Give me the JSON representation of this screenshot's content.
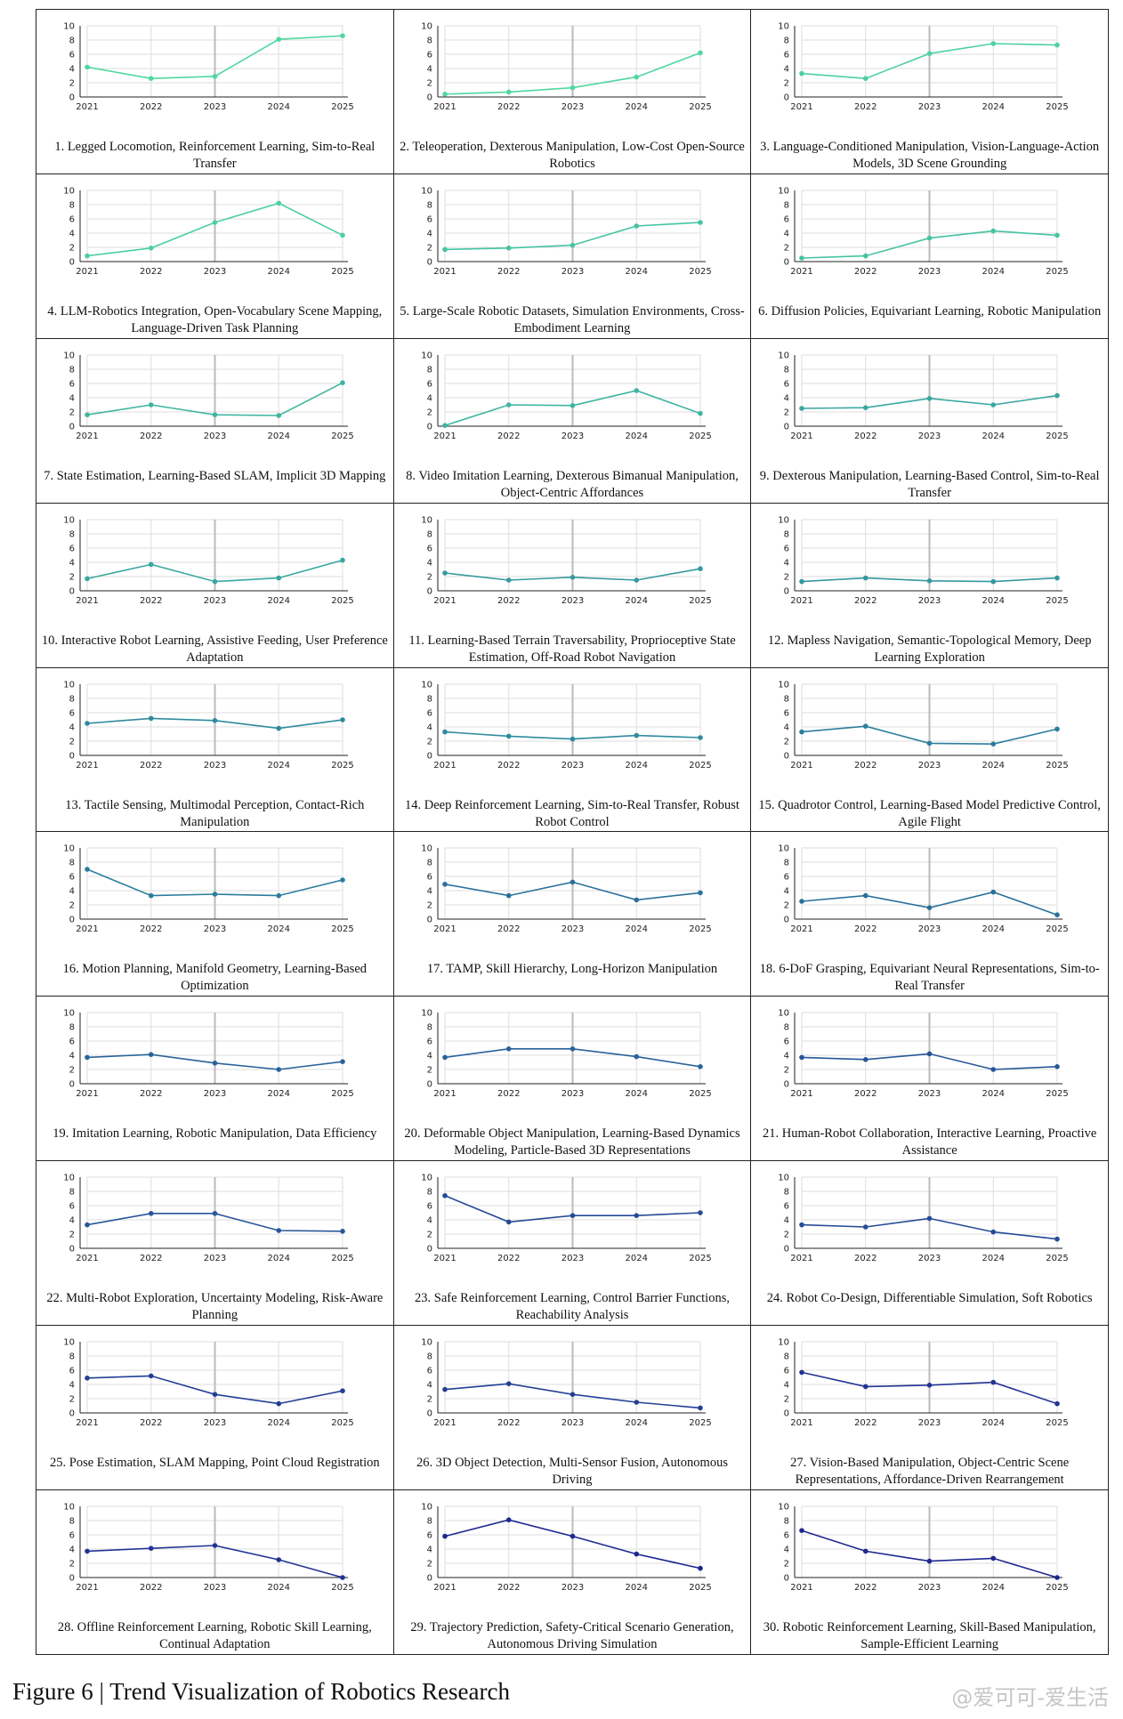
{
  "figure_caption": "Figure 6 | Trend Visualization of Robotics Research",
  "watermark": "@爱可可-爱生活",
  "colors": {
    "palette": [
      "#4fd8a0",
      "#4ccfa3",
      "#45c3a2",
      "#3fb5a1",
      "#39a7a0",
      "#34999f",
      "#2e8a9e",
      "#2b7d9d",
      "#2a709b",
      "#29639a",
      "#275698",
      "#254b96",
      "#233f94",
      "#223393",
      "#1f278f"
    ],
    "grid": "#dddddd",
    "mid_grid": "#bbbbbb",
    "axis": "#222222"
  },
  "chart_data": [
    {
      "type": "line",
      "caption": "1. Legged Locomotion, Reinforcement Learning, Sim-to-Real Transfer",
      "x": [
        "2021",
        "2022",
        "2023",
        "2024",
        "2025"
      ],
      "values": [
        4.2,
        2.6,
        2.9,
        8.1,
        8.6
      ],
      "ylim": [
        0,
        10
      ],
      "yticks": [
        "0",
        "2",
        "4",
        "6",
        "8",
        "10"
      ]
    },
    {
      "type": "line",
      "caption": "2. Teleoperation, Dexterous Manipulation, Low-Cost Open-Source Robotics",
      "x": [
        "2021",
        "2022",
        "2023",
        "2024",
        "2025"
      ],
      "values": [
        0.4,
        0.7,
        1.3,
        2.8,
        6.2
      ],
      "ylim": [
        0,
        10
      ],
      "yticks": [
        "0",
        "2",
        "4",
        "6",
        "8",
        "10"
      ]
    },
    {
      "type": "line",
      "caption": "3. Language-Conditioned Manipulation, Vision-Language-Action Models, 3D Scene Grounding",
      "x": [
        "2021",
        "2022",
        "2023",
        "2024",
        "2025"
      ],
      "values": [
        3.3,
        2.6,
        6.1,
        7.5,
        7.3
      ],
      "ylim": [
        0,
        10
      ],
      "yticks": [
        "0",
        "2",
        "4",
        "6",
        "8",
        "10"
      ]
    },
    {
      "type": "line",
      "caption": "4. LLM-Robotics Integration, Open-Vocabulary Scene Mapping, Language-Driven Task Planning",
      "x": [
        "2021",
        "2022",
        "2023",
        "2024",
        "2025"
      ],
      "values": [
        0.8,
        1.9,
        5.5,
        8.2,
        3.7
      ],
      "ylim": [
        0,
        10
      ],
      "yticks": [
        "0",
        "2",
        "4",
        "6",
        "8",
        "10"
      ]
    },
    {
      "type": "line",
      "caption": "5. Large-Scale Robotic Datasets, Simulation Environments, Cross-Embodiment Learning",
      "x": [
        "2021",
        "2022",
        "2023",
        "2024",
        "2025"
      ],
      "values": [
        1.7,
        1.9,
        2.3,
        5.0,
        5.5
      ],
      "ylim": [
        0,
        10
      ],
      "yticks": [
        "0",
        "2",
        "4",
        "6",
        "8",
        "10"
      ]
    },
    {
      "type": "line",
      "caption": "6. Diffusion Policies, Equivariant Learning, Robotic Manipulation",
      "x": [
        "2021",
        "2022",
        "2023",
        "2024",
        "2025"
      ],
      "values": [
        0.5,
        0.8,
        3.3,
        4.3,
        3.7
      ],
      "ylim": [
        0,
        10
      ],
      "yticks": [
        "0",
        "2",
        "4",
        "6",
        "8",
        "10"
      ]
    },
    {
      "type": "line",
      "caption": "7. State Estimation, Learning-Based SLAM, Implicit 3D Mapping",
      "x": [
        "2021",
        "2022",
        "2023",
        "2024",
        "2025"
      ],
      "values": [
        1.6,
        3.0,
        1.6,
        1.5,
        6.1
      ],
      "ylim": [
        0,
        10
      ],
      "yticks": [
        "0",
        "2",
        "4",
        "6",
        "8",
        "10"
      ]
    },
    {
      "type": "line",
      "caption": "8. Video Imitation Learning, Dexterous Bimanual Manipulation, Object-Centric Affordances",
      "x": [
        "2021",
        "2022",
        "2023",
        "2024",
        "2025"
      ],
      "values": [
        0.1,
        3.0,
        2.9,
        5.0,
        1.8
      ],
      "ylim": [
        0,
        10
      ],
      "yticks": [
        "0",
        "2",
        "4",
        "6",
        "8",
        "10"
      ]
    },
    {
      "type": "line",
      "caption": "9. Dexterous Manipulation, Learning-Based Control, Sim-to-Real Transfer",
      "x": [
        "2021",
        "2022",
        "2023",
        "2024",
        "2025"
      ],
      "values": [
        2.5,
        2.6,
        3.9,
        3.0,
        4.3
      ],
      "ylim": [
        0,
        10
      ],
      "yticks": [
        "0",
        "2",
        "4",
        "6",
        "8",
        "10"
      ]
    },
    {
      "type": "line",
      "caption": "10. Interactive Robot Learning, Assistive Feeding, User Preference Adaptation",
      "x": [
        "2021",
        "2022",
        "2023",
        "2024",
        "2025"
      ],
      "values": [
        1.7,
        3.7,
        1.3,
        1.8,
        4.3
      ],
      "ylim": [
        0,
        10
      ],
      "yticks": [
        "0",
        "2",
        "4",
        "6",
        "8",
        "10"
      ]
    },
    {
      "type": "line",
      "caption": "11. Learning-Based Terrain Traversability, Proprioceptive State Estimation, Off-Road Robot Navigation",
      "x": [
        "2021",
        "2022",
        "2023",
        "2024",
        "2025"
      ],
      "values": [
        2.5,
        1.5,
        1.9,
        1.5,
        3.1
      ],
      "ylim": [
        0,
        10
      ],
      "yticks": [
        "0",
        "2",
        "4",
        "6",
        "8",
        "10"
      ]
    },
    {
      "type": "line",
      "caption": "12. Mapless Navigation, Semantic-Topological Memory, Deep Learning Exploration",
      "x": [
        "2021",
        "2022",
        "2023",
        "2024",
        "2025"
      ],
      "values": [
        1.3,
        1.8,
        1.4,
        1.3,
        1.8
      ],
      "ylim": [
        0,
        10
      ],
      "yticks": [
        "0",
        "2",
        "4",
        "6",
        "8",
        "10"
      ]
    },
    {
      "type": "line",
      "caption": "13. Tactile Sensing, Multimodal Perception, Contact-Rich Manipulation",
      "x": [
        "2021",
        "2022",
        "2023",
        "2024",
        "2025"
      ],
      "values": [
        4.5,
        5.2,
        4.9,
        3.8,
        5.0
      ],
      "ylim": [
        0,
        10
      ],
      "yticks": [
        "0",
        "2",
        "4",
        "6",
        "8",
        "10"
      ]
    },
    {
      "type": "line",
      "caption": "14. Deep Reinforcement Learning, Sim-to-Real Transfer, Robust Robot Control",
      "x": [
        "2021",
        "2022",
        "2023",
        "2024",
        "2025"
      ],
      "values": [
        3.3,
        2.7,
        2.3,
        2.8,
        2.5
      ],
      "ylim": [
        0,
        10
      ],
      "yticks": [
        "0",
        "2",
        "4",
        "6",
        "8",
        "10"
      ]
    },
    {
      "type": "line",
      "caption": "15. Quadrotor Control, Learning-Based Model Predictive Control, Agile Flight",
      "x": [
        "2021",
        "2022",
        "2023",
        "2024",
        "2025"
      ],
      "values": [
        3.3,
        4.1,
        1.7,
        1.6,
        3.7
      ],
      "ylim": [
        0,
        10
      ],
      "yticks": [
        "0",
        "2",
        "4",
        "6",
        "8",
        "10"
      ]
    },
    {
      "type": "line",
      "caption": "16. Motion Planning, Manifold Geometry, Learning-Based Optimization",
      "x": [
        "2021",
        "2022",
        "2023",
        "2024",
        "2025"
      ],
      "values": [
        7.0,
        3.3,
        3.5,
        3.3,
        5.5
      ],
      "ylim": [
        0,
        10
      ],
      "yticks": [
        "0",
        "2",
        "4",
        "6",
        "8",
        "10"
      ]
    },
    {
      "type": "line",
      "caption": "17. TAMP, Skill Hierarchy, Long-Horizon Manipulation",
      "x": [
        "2021",
        "2022",
        "2023",
        "2024",
        "2025"
      ],
      "values": [
        4.9,
        3.3,
        5.2,
        2.7,
        3.7
      ],
      "ylim": [
        0,
        10
      ],
      "yticks": [
        "0",
        "2",
        "4",
        "6",
        "8",
        "10"
      ]
    },
    {
      "type": "line",
      "caption": "18. 6-DoF Grasping, Equivariant Neural Representations, Sim-to-Real Transfer",
      "x": [
        "2021",
        "2022",
        "2023",
        "2024",
        "2025"
      ],
      "values": [
        2.5,
        3.3,
        1.6,
        3.8,
        0.6
      ],
      "ylim": [
        0,
        10
      ],
      "yticks": [
        "0",
        "2",
        "4",
        "6",
        "8",
        "10"
      ]
    },
    {
      "type": "line",
      "caption": "19. Imitation Learning, Robotic Manipulation, Data Efficiency",
      "x": [
        "2021",
        "2022",
        "2023",
        "2024",
        "2025"
      ],
      "values": [
        3.7,
        4.1,
        2.9,
        2.0,
        3.1
      ],
      "ylim": [
        0,
        10
      ],
      "yticks": [
        "0",
        "2",
        "4",
        "6",
        "8",
        "10"
      ]
    },
    {
      "type": "line",
      "caption": "20. Deformable Object Manipulation, Learning-Based Dynamics Modeling, Particle-Based 3D Representations",
      "x": [
        "2021",
        "2022",
        "2023",
        "2024",
        "2025"
      ],
      "values": [
        3.7,
        4.9,
        4.9,
        3.8,
        2.4
      ],
      "ylim": [
        0,
        10
      ],
      "yticks": [
        "0",
        "2",
        "4",
        "6",
        "8",
        "10"
      ]
    },
    {
      "type": "line",
      "caption": "21. Human-Robot Collaboration, Interactive Learning, Proactive Assistance",
      "x": [
        "2021",
        "2022",
        "2023",
        "2024",
        "2025"
      ],
      "values": [
        3.7,
        3.4,
        4.2,
        2.0,
        2.4
      ],
      "ylim": [
        0,
        10
      ],
      "yticks": [
        "0",
        "2",
        "4",
        "6",
        "8",
        "10"
      ]
    },
    {
      "type": "line",
      "caption": "22. Multi-Robot Exploration, Uncertainty Modeling, Risk-Aware Planning",
      "x": [
        "2021",
        "2022",
        "2023",
        "2024",
        "2025"
      ],
      "values": [
        3.3,
        4.9,
        4.9,
        2.5,
        2.4
      ],
      "ylim": [
        0,
        10
      ],
      "yticks": [
        "0",
        "2",
        "4",
        "6",
        "8",
        "10"
      ]
    },
    {
      "type": "line",
      "caption": "23. Safe Reinforcement Learning, Control Barrier Functions, Reachability Analysis",
      "x": [
        "2021",
        "2022",
        "2023",
        "2024",
        "2025"
      ],
      "values": [
        7.4,
        3.7,
        4.6,
        4.6,
        5.0
      ],
      "ylim": [
        0,
        10
      ],
      "yticks": [
        "0",
        "2",
        "4",
        "6",
        "8",
        "10"
      ]
    },
    {
      "type": "line",
      "caption": "24. Robot Co-Design, Differentiable Simulation, Soft Robotics",
      "x": [
        "2021",
        "2022",
        "2023",
        "2024",
        "2025"
      ],
      "values": [
        3.3,
        3.0,
        4.2,
        2.3,
        1.3
      ],
      "ylim": [
        0,
        10
      ],
      "yticks": [
        "0",
        "2",
        "4",
        "6",
        "8",
        "10"
      ]
    },
    {
      "type": "line",
      "caption": "25. Pose Estimation, SLAM Mapping, Point Cloud Registration",
      "x": [
        "2021",
        "2022",
        "2023",
        "2024",
        "2025"
      ],
      "values": [
        4.9,
        5.2,
        2.6,
        1.3,
        3.1
      ],
      "ylim": [
        0,
        10
      ],
      "yticks": [
        "0",
        "2",
        "4",
        "6",
        "8",
        "10"
      ]
    },
    {
      "type": "line",
      "caption": "26. 3D Object Detection, Multi-Sensor Fusion, Autonomous Driving",
      "x": [
        "2021",
        "2022",
        "2023",
        "2024",
        "2025"
      ],
      "values": [
        3.3,
        4.1,
        2.6,
        1.5,
        0.7
      ],
      "ylim": [
        0,
        10
      ],
      "yticks": [
        "0",
        "2",
        "4",
        "6",
        "8",
        "10"
      ]
    },
    {
      "type": "line",
      "caption": "27. Vision-Based Manipulation, Object-Centric Scene Representations, Affordance-Driven Rearrangement",
      "x": [
        "2021",
        "2022",
        "2023",
        "2024",
        "2025"
      ],
      "values": [
        5.7,
        3.7,
        3.9,
        4.3,
        1.3
      ],
      "ylim": [
        0,
        10
      ],
      "yticks": [
        "0",
        "2",
        "4",
        "6",
        "8",
        "10"
      ]
    },
    {
      "type": "line",
      "caption": "28. Offline Reinforcement Learning, Robotic Skill Learning, Continual Adaptation",
      "x": [
        "2021",
        "2022",
        "2023",
        "2024",
        "2025"
      ],
      "values": [
        3.7,
        4.1,
        4.5,
        2.5,
        0.0
      ],
      "ylim": [
        0,
        10
      ],
      "yticks": [
        "0",
        "2",
        "4",
        "6",
        "8",
        "10"
      ]
    },
    {
      "type": "line",
      "caption": "29. Trajectory Prediction, Safety-Critical Scenario Generation, Autonomous Driving Simulation",
      "x": [
        "2021",
        "2022",
        "2023",
        "2024",
        "2025"
      ],
      "values": [
        5.8,
        8.1,
        5.8,
        3.3,
        1.3
      ],
      "ylim": [
        0,
        10
      ],
      "yticks": [
        "0",
        "2",
        "4",
        "6",
        "8",
        "10"
      ]
    },
    {
      "type": "line",
      "caption": "30. Robotic Reinforcement Learning, Skill-Based Manipulation, Sample-Efficient Learning",
      "x": [
        "2021",
        "2022",
        "2023",
        "2024",
        "2025"
      ],
      "values": [
        6.6,
        3.7,
        2.3,
        2.7,
        0.0
      ],
      "ylim": [
        0,
        10
      ],
      "yticks": [
        "0",
        "2",
        "4",
        "6",
        "8",
        "10"
      ]
    }
  ]
}
